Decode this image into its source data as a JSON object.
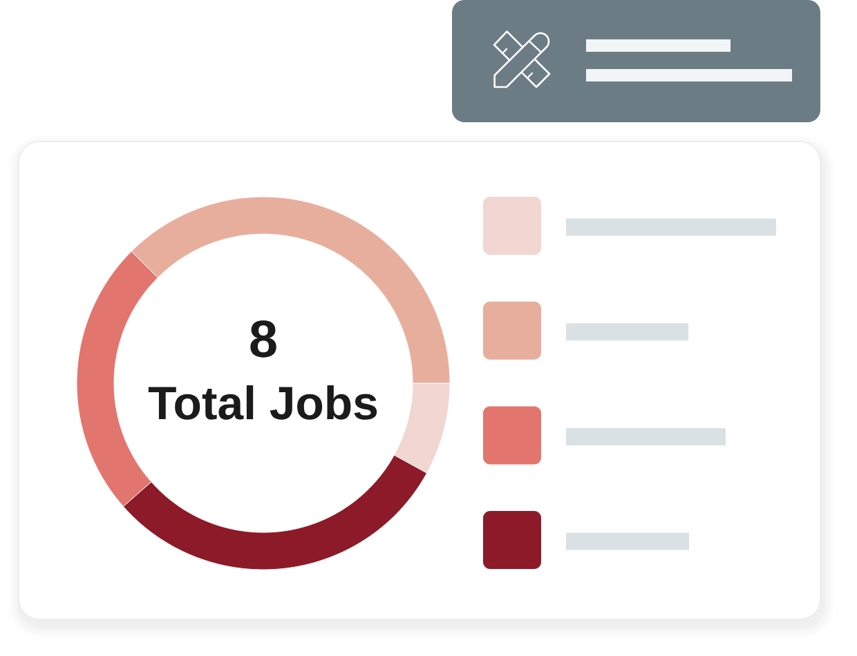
{
  "chart_data": {
    "type": "donut",
    "categories": [
      null,
      null,
      null,
      null
    ],
    "values": [
      8,
      37.5,
      24,
      30.5
    ],
    "colors": [
      "#f1d6d1",
      "#e8ae9d",
      "#e2756d",
      "#8c1a28"
    ],
    "annotations": [
      "8",
      "Total Jobs"
    ]
  }
}
